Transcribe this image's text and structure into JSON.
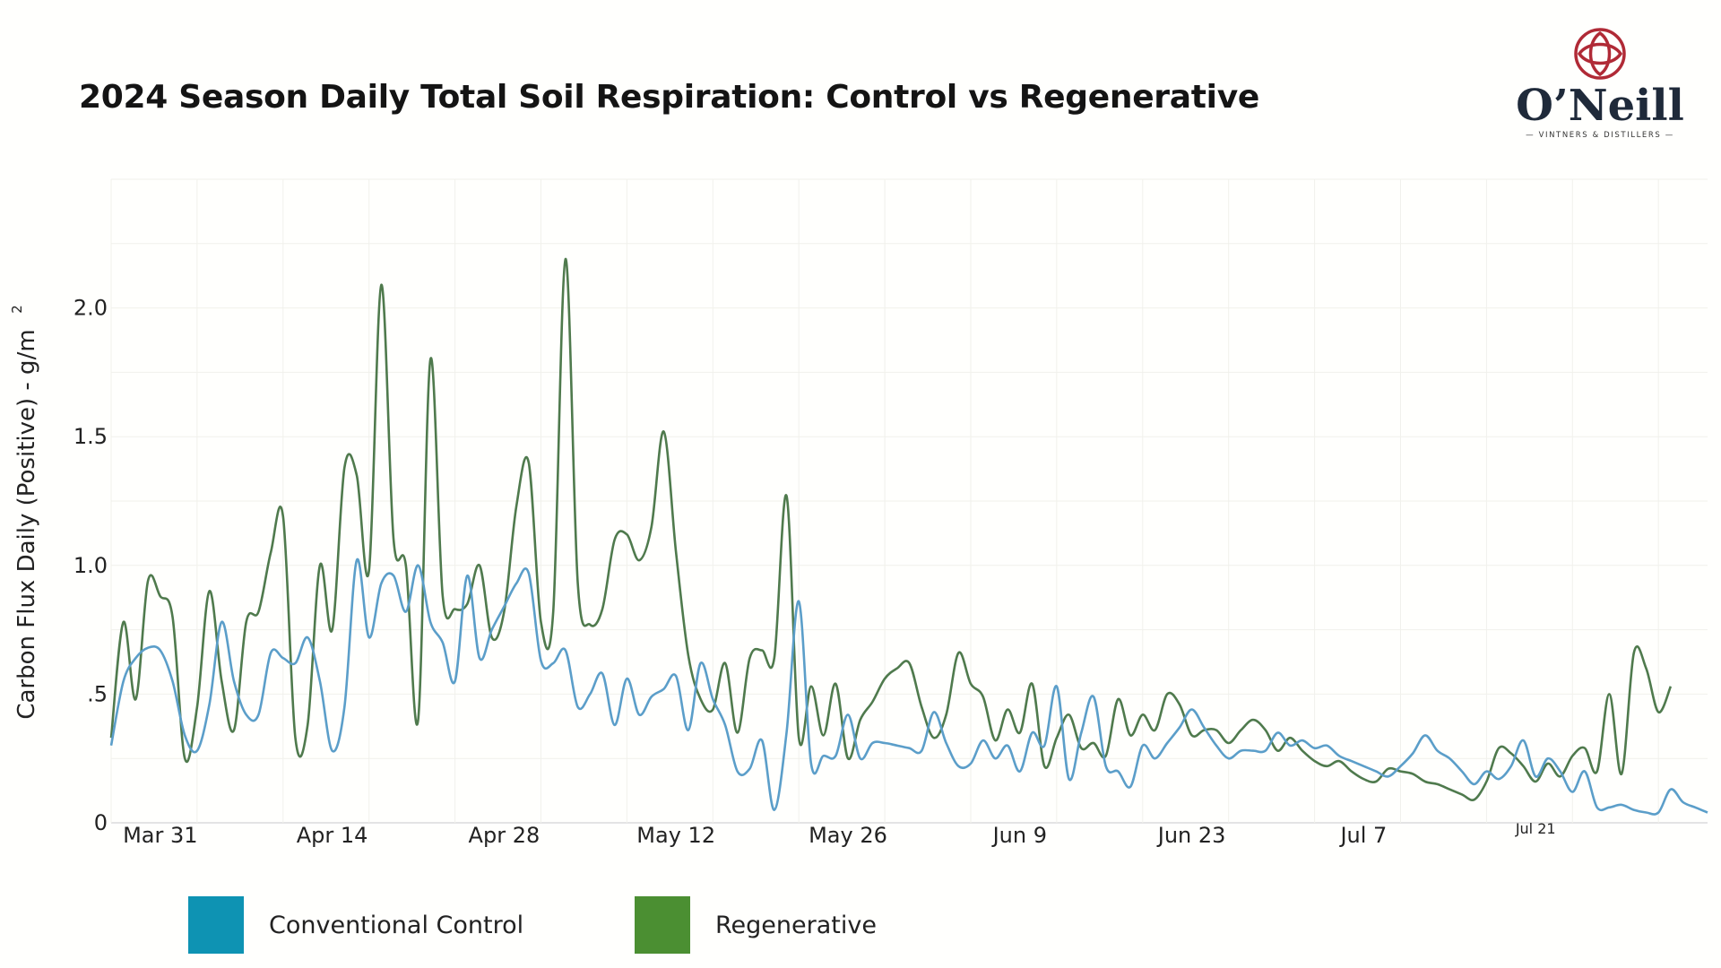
{
  "chart_data": {
    "type": "line",
    "title": "2024 Season Daily Total Soil Respiration: Control vs Regenerative",
    "ylabel": "Carbon Flux Daily (Positive)  - g/m",
    "ylabel_superscript": "2",
    "xlabel": "",
    "ylim": [
      0,
      2.5
    ],
    "grid": true,
    "legend_position": "bottom",
    "y_ticks": [
      {
        "value": 0,
        "label": "0"
      },
      {
        "value": 0.5,
        "label": ".5"
      },
      {
        "value": 1.0,
        "label": "1.0"
      },
      {
        "value": 1.5,
        "label": "1.5"
      },
      {
        "value": 2.0,
        "label": "2.0"
      }
    ],
    "x_ticks": [
      {
        "date": "2024-03-31",
        "label": "Mar 31"
      },
      {
        "date": "2024-04-14",
        "label": "Apr 14"
      },
      {
        "date": "2024-04-28",
        "label": "Apr 28"
      },
      {
        "date": "2024-05-12",
        "label": "May 12"
      },
      {
        "date": "2024-05-26",
        "label": "May 26"
      },
      {
        "date": "2024-06-09",
        "label": "Jun 9"
      },
      {
        "date": "2024-06-23",
        "label": "Jun 23"
      },
      {
        "date": "2024-07-07",
        "label": "Jul 7"
      },
      {
        "date": "2024-07-21",
        "label": "Jul 21"
      }
    ],
    "xlim": [
      "2024-03-27",
      "2024-07-31"
    ],
    "series": [
      {
        "name": "Conventional Control",
        "color": "#5b9ec9",
        "points": [
          [
            "2024-03-27",
            0.3
          ],
          [
            "2024-03-28",
            0.55
          ],
          [
            "2024-03-29",
            0.64
          ],
          [
            "2024-03-30",
            0.68
          ],
          [
            "2024-03-31",
            0.67
          ],
          [
            "2024-04-01",
            0.55
          ],
          [
            "2024-04-02",
            0.34
          ],
          [
            "2024-04-03",
            0.28
          ],
          [
            "2024-04-04",
            0.46
          ],
          [
            "2024-04-05",
            0.78
          ],
          [
            "2024-04-06",
            0.55
          ],
          [
            "2024-04-07",
            0.42
          ],
          [
            "2024-04-08",
            0.42
          ],
          [
            "2024-04-09",
            0.66
          ],
          [
            "2024-04-10",
            0.64
          ],
          [
            "2024-04-11",
            0.62
          ],
          [
            "2024-04-12",
            0.72
          ],
          [
            "2024-04-13",
            0.55
          ],
          [
            "2024-04-14",
            0.28
          ],
          [
            "2024-04-15",
            0.45
          ],
          [
            "2024-04-16",
            1.02
          ],
          [
            "2024-04-17",
            0.72
          ],
          [
            "2024-04-18",
            0.93
          ],
          [
            "2024-04-19",
            0.96
          ],
          [
            "2024-04-20",
            0.82
          ],
          [
            "2024-04-21",
            1.0
          ],
          [
            "2024-04-22",
            0.78
          ],
          [
            "2024-04-23",
            0.7
          ],
          [
            "2024-04-24",
            0.55
          ],
          [
            "2024-04-25",
            0.96
          ],
          [
            "2024-04-26",
            0.64
          ],
          [
            "2024-04-27",
            0.75
          ],
          [
            "2024-04-28",
            0.84
          ],
          [
            "2024-04-29",
            0.93
          ],
          [
            "2024-04-30",
            0.97
          ],
          [
            "2024-05-01",
            0.63
          ],
          [
            "2024-05-02",
            0.62
          ],
          [
            "2024-05-03",
            0.67
          ],
          [
            "2024-05-04",
            0.45
          ],
          [
            "2024-05-05",
            0.5
          ],
          [
            "2024-05-06",
            0.58
          ],
          [
            "2024-05-07",
            0.38
          ],
          [
            "2024-05-08",
            0.56
          ],
          [
            "2024-05-09",
            0.42
          ],
          [
            "2024-05-10",
            0.49
          ],
          [
            "2024-05-11",
            0.52
          ],
          [
            "2024-05-12",
            0.57
          ],
          [
            "2024-05-13",
            0.36
          ],
          [
            "2024-05-14",
            0.62
          ],
          [
            "2024-05-15",
            0.48
          ],
          [
            "2024-05-16",
            0.38
          ],
          [
            "2024-05-17",
            0.2
          ],
          [
            "2024-05-18",
            0.21
          ],
          [
            "2024-05-19",
            0.32
          ],
          [
            "2024-05-20",
            0.05
          ],
          [
            "2024-05-21",
            0.35
          ],
          [
            "2024-05-22",
            0.86
          ],
          [
            "2024-05-23",
            0.23
          ],
          [
            "2024-05-24",
            0.26
          ],
          [
            "2024-05-25",
            0.26
          ],
          [
            "2024-05-26",
            0.42
          ],
          [
            "2024-05-27",
            0.25
          ],
          [
            "2024-05-28",
            0.31
          ],
          [
            "2024-05-29",
            0.31
          ],
          [
            "2024-05-30",
            0.3
          ],
          [
            "2024-05-31",
            0.29
          ],
          [
            "2024-06-01",
            0.28
          ],
          [
            "2024-06-02",
            0.43
          ],
          [
            "2024-06-03",
            0.31
          ],
          [
            "2024-06-04",
            0.22
          ],
          [
            "2024-06-05",
            0.23
          ],
          [
            "2024-06-06",
            0.32
          ],
          [
            "2024-06-07",
            0.25
          ],
          [
            "2024-06-08",
            0.3
          ],
          [
            "2024-06-09",
            0.2
          ],
          [
            "2024-06-10",
            0.35
          ],
          [
            "2024-06-11",
            0.3
          ],
          [
            "2024-06-12",
            0.53
          ],
          [
            "2024-06-13",
            0.17
          ],
          [
            "2024-06-14",
            0.35
          ],
          [
            "2024-06-15",
            0.49
          ],
          [
            "2024-06-16",
            0.22
          ],
          [
            "2024-06-17",
            0.2
          ],
          [
            "2024-06-18",
            0.14
          ],
          [
            "2024-06-19",
            0.3
          ],
          [
            "2024-06-20",
            0.25
          ],
          [
            "2024-06-21",
            0.31
          ],
          [
            "2024-06-22",
            0.37
          ],
          [
            "2024-06-23",
            0.44
          ],
          [
            "2024-06-24",
            0.37
          ],
          [
            "2024-06-25",
            0.3
          ],
          [
            "2024-06-26",
            0.25
          ],
          [
            "2024-06-27",
            0.28
          ],
          [
            "2024-06-28",
            0.28
          ],
          [
            "2024-06-29",
            0.28
          ],
          [
            "2024-06-30",
            0.35
          ],
          [
            "2024-07-01",
            0.3
          ],
          [
            "2024-07-02",
            0.32
          ],
          [
            "2024-07-03",
            0.29
          ],
          [
            "2024-07-04",
            0.3
          ],
          [
            "2024-07-05",
            0.26
          ],
          [
            "2024-07-06",
            0.24
          ],
          [
            "2024-07-07",
            0.22
          ],
          [
            "2024-07-08",
            0.2
          ],
          [
            "2024-07-09",
            0.18
          ],
          [
            "2024-07-10",
            0.22
          ],
          [
            "2024-07-11",
            0.27
          ],
          [
            "2024-07-12",
            0.34
          ],
          [
            "2024-07-13",
            0.28
          ],
          [
            "2024-07-14",
            0.25
          ],
          [
            "2024-07-15",
            0.2
          ],
          [
            "2024-07-16",
            0.15
          ],
          [
            "2024-07-17",
            0.2
          ],
          [
            "2024-07-18",
            0.17
          ],
          [
            "2024-07-19",
            0.22
          ],
          [
            "2024-07-20",
            0.32
          ],
          [
            "2024-07-21",
            0.18
          ],
          [
            "2024-07-22",
            0.25
          ],
          [
            "2024-07-23",
            0.2
          ],
          [
            "2024-07-24",
            0.12
          ],
          [
            "2024-07-25",
            0.2
          ],
          [
            "2024-07-26",
            0.06
          ],
          [
            "2024-07-27",
            0.06
          ],
          [
            "2024-07-28",
            0.07
          ],
          [
            "2024-07-29",
            0.05
          ],
          [
            "2024-07-30",
            0.04
          ],
          [
            "2024-07-31",
            0.04
          ],
          [
            "2024-08-01",
            0.13
          ],
          [
            "2024-08-02",
            0.08
          ],
          [
            "2024-08-03",
            0.06
          ],
          [
            "2024-08-04",
            0.04
          ]
        ]
      },
      {
        "name": "Regenerative",
        "color": "#4f7a4d",
        "points": [
          [
            "2024-03-27",
            0.33
          ],
          [
            "2024-03-28",
            0.78
          ],
          [
            "2024-03-29",
            0.48
          ],
          [
            "2024-03-30",
            0.94
          ],
          [
            "2024-03-31",
            0.88
          ],
          [
            "2024-04-01",
            0.8
          ],
          [
            "2024-04-02",
            0.25
          ],
          [
            "2024-04-03",
            0.45
          ],
          [
            "2024-04-04",
            0.9
          ],
          [
            "2024-04-05",
            0.55
          ],
          [
            "2024-04-06",
            0.36
          ],
          [
            "2024-04-07",
            0.78
          ],
          [
            "2024-04-08",
            0.82
          ],
          [
            "2024-04-09",
            1.05
          ],
          [
            "2024-04-10",
            1.19
          ],
          [
            "2024-04-11",
            0.33
          ],
          [
            "2024-04-12",
            0.38
          ],
          [
            "2024-04-13",
            1.0
          ],
          [
            "2024-04-14",
            0.75
          ],
          [
            "2024-04-15",
            1.38
          ],
          [
            "2024-04-16",
            1.35
          ],
          [
            "2024-04-17",
            0.98
          ],
          [
            "2024-04-18",
            2.09
          ],
          [
            "2024-04-19",
            1.1
          ],
          [
            "2024-04-20",
            1.0
          ],
          [
            "2024-04-21",
            0.4
          ],
          [
            "2024-04-22",
            1.8
          ],
          [
            "2024-04-23",
            0.88
          ],
          [
            "2024-04-24",
            0.83
          ],
          [
            "2024-04-25",
            0.85
          ],
          [
            "2024-04-26",
            1.0
          ],
          [
            "2024-04-27",
            0.72
          ],
          [
            "2024-04-28",
            0.82
          ],
          [
            "2024-04-29",
            1.23
          ],
          [
            "2024-04-30",
            1.4
          ],
          [
            "2024-05-01",
            0.78
          ],
          [
            "2024-05-02",
            0.82
          ],
          [
            "2024-05-03",
            2.19
          ],
          [
            "2024-05-04",
            0.93
          ],
          [
            "2024-05-05",
            0.77
          ],
          [
            "2024-05-06",
            0.83
          ],
          [
            "2024-05-07",
            1.1
          ],
          [
            "2024-05-08",
            1.12
          ],
          [
            "2024-05-09",
            1.02
          ],
          [
            "2024-05-10",
            1.15
          ],
          [
            "2024-05-11",
            1.52
          ],
          [
            "2024-05-12",
            1.05
          ],
          [
            "2024-05-13",
            0.65
          ],
          [
            "2024-05-14",
            0.48
          ],
          [
            "2024-05-15",
            0.44
          ],
          [
            "2024-05-16",
            0.62
          ],
          [
            "2024-05-17",
            0.35
          ],
          [
            "2024-05-18",
            0.64
          ],
          [
            "2024-05-19",
            0.67
          ],
          [
            "2024-05-20",
            0.64
          ],
          [
            "2024-05-21",
            1.27
          ],
          [
            "2024-05-22",
            0.33
          ],
          [
            "2024-05-23",
            0.53
          ],
          [
            "2024-05-24",
            0.34
          ],
          [
            "2024-05-25",
            0.54
          ],
          [
            "2024-05-26",
            0.25
          ],
          [
            "2024-05-27",
            0.4
          ],
          [
            "2024-05-28",
            0.47
          ],
          [
            "2024-05-29",
            0.56
          ],
          [
            "2024-05-30",
            0.6
          ],
          [
            "2024-05-31",
            0.62
          ],
          [
            "2024-06-01",
            0.45
          ],
          [
            "2024-06-02",
            0.33
          ],
          [
            "2024-06-03",
            0.42
          ],
          [
            "2024-06-04",
            0.66
          ],
          [
            "2024-06-05",
            0.54
          ],
          [
            "2024-06-06",
            0.49
          ],
          [
            "2024-06-07",
            0.32
          ],
          [
            "2024-06-08",
            0.44
          ],
          [
            "2024-06-09",
            0.35
          ],
          [
            "2024-06-10",
            0.54
          ],
          [
            "2024-06-11",
            0.22
          ],
          [
            "2024-06-12",
            0.33
          ],
          [
            "2024-06-13",
            0.42
          ],
          [
            "2024-06-14",
            0.29
          ],
          [
            "2024-06-15",
            0.31
          ],
          [
            "2024-06-16",
            0.26
          ],
          [
            "2024-06-17",
            0.48
          ],
          [
            "2024-06-18",
            0.34
          ],
          [
            "2024-06-19",
            0.42
          ],
          [
            "2024-06-20",
            0.36
          ],
          [
            "2024-06-21",
            0.5
          ],
          [
            "2024-06-22",
            0.46
          ],
          [
            "2024-06-23",
            0.34
          ],
          [
            "2024-06-24",
            0.36
          ],
          [
            "2024-06-25",
            0.36
          ],
          [
            "2024-06-26",
            0.31
          ],
          [
            "2024-06-27",
            0.36
          ],
          [
            "2024-06-28",
            0.4
          ],
          [
            "2024-06-29",
            0.36
          ],
          [
            "2024-06-30",
            0.28
          ],
          [
            "2024-07-01",
            0.33
          ],
          [
            "2024-07-02",
            0.28
          ],
          [
            "2024-07-03",
            0.24
          ],
          [
            "2024-07-04",
            0.22
          ],
          [
            "2024-07-05",
            0.24
          ],
          [
            "2024-07-06",
            0.2
          ],
          [
            "2024-07-07",
            0.17
          ],
          [
            "2024-07-08",
            0.16
          ],
          [
            "2024-07-09",
            0.21
          ],
          [
            "2024-07-10",
            0.2
          ],
          [
            "2024-07-11",
            0.19
          ],
          [
            "2024-07-12",
            0.16
          ],
          [
            "2024-07-13",
            0.15
          ],
          [
            "2024-07-14",
            0.13
          ],
          [
            "2024-07-15",
            0.11
          ],
          [
            "2024-07-16",
            0.09
          ],
          [
            "2024-07-17",
            0.16
          ],
          [
            "2024-07-18",
            0.29
          ],
          [
            "2024-07-19",
            0.27
          ],
          [
            "2024-07-20",
            0.22
          ],
          [
            "2024-07-21",
            0.16
          ],
          [
            "2024-07-22",
            0.23
          ],
          [
            "2024-07-23",
            0.18
          ],
          [
            "2024-07-24",
            0.26
          ],
          [
            "2024-07-25",
            0.29
          ],
          [
            "2024-07-26",
            0.2
          ],
          [
            "2024-07-27",
            0.5
          ],
          [
            "2024-07-28",
            0.19
          ],
          [
            "2024-07-29",
            0.66
          ],
          [
            "2024-07-30",
            0.6
          ],
          [
            "2024-07-31",
            0.43
          ],
          [
            "2024-08-01",
            0.53
          ]
        ]
      }
    ]
  },
  "legend": {
    "items": [
      {
        "label": "Conventional Control",
        "color": "#0e93b3"
      },
      {
        "label": "Regenerative",
        "color": "#4b8f32"
      }
    ]
  },
  "logo": {
    "name": "O’Neill",
    "tagline": "— VINTNERS & DISTILLERS —",
    "color": "#b02a36"
  }
}
